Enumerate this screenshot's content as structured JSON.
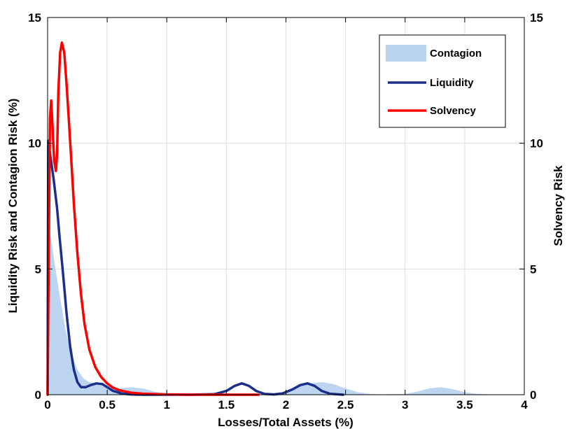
{
  "chart_data": {
    "type": "area",
    "x_axis": {
      "label": "Losses/Total Assets (%)",
      "range": [
        0,
        4
      ],
      "ticks": [
        0,
        0.5,
        1,
        1.5,
        2,
        2.5,
        3,
        3.5,
        4
      ],
      "tick_labels": [
        "0",
        "0.5",
        "1",
        "1.5",
        "2",
        "2.5",
        "3",
        "3.5",
        "4"
      ]
    },
    "y_axis_left": {
      "label": "Liquidity Risk and Contagion Risk (%)",
      "range": [
        0,
        15
      ],
      "ticks": [
        0,
        5,
        10,
        15
      ],
      "tick_labels": [
        "0",
        "5",
        "10",
        "15"
      ]
    },
    "y_axis_right": {
      "label": "Solvency Risk",
      "range": [
        0,
        15
      ],
      "ticks": [
        0,
        5,
        10,
        15
      ],
      "tick_labels": [
        "0",
        "5",
        "10",
        "15"
      ]
    },
    "grid": true,
    "legend": {
      "placement": "top-right",
      "entries": [
        "Contagion",
        "Liquidity",
        "Solvency"
      ]
    },
    "series": [
      {
        "name": "Contagion",
        "kind": "area",
        "axis": "left",
        "color": "#b9d3f0",
        "points": [
          [
            0,
            0
          ],
          [
            0.01,
            6.5
          ],
          [
            0.03,
            6.2
          ],
          [
            0.06,
            5.2
          ],
          [
            0.1,
            4.0
          ],
          [
            0.15,
            2.6
          ],
          [
            0.2,
            1.6
          ],
          [
            0.25,
            1.0
          ],
          [
            0.3,
            0.65
          ],
          [
            0.35,
            0.5
          ],
          [
            0.4,
            0.45
          ],
          [
            0.5,
            0.35
          ],
          [
            0.6,
            0.25
          ],
          [
            0.7,
            0.3
          ],
          [
            0.8,
            0.25
          ],
          [
            0.9,
            0.12
          ],
          [
            1.0,
            0.04
          ],
          [
            1.1,
            0.02
          ],
          [
            1.2,
            0.01
          ],
          [
            1.4,
            0
          ],
          [
            1.6,
            0
          ],
          [
            1.8,
            0.02
          ],
          [
            2.0,
            0.12
          ],
          [
            2.1,
            0.3
          ],
          [
            2.2,
            0.45
          ],
          [
            2.3,
            0.5
          ],
          [
            2.4,
            0.42
          ],
          [
            2.5,
            0.25
          ],
          [
            2.6,
            0.1
          ],
          [
            2.7,
            0.03
          ],
          [
            2.8,
            0.01
          ],
          [
            3.0,
            0.03
          ],
          [
            3.1,
            0.12
          ],
          [
            3.2,
            0.25
          ],
          [
            3.3,
            0.3
          ],
          [
            3.4,
            0.22
          ],
          [
            3.5,
            0.1
          ],
          [
            3.6,
            0.03
          ],
          [
            3.7,
            0.01
          ],
          [
            3.8,
            0
          ]
        ]
      },
      {
        "name": "Liquidity",
        "kind": "line",
        "axis": "left",
        "color": "#1b2f8a",
        "points": [
          [
            0,
            0
          ],
          [
            0.005,
            10.1
          ],
          [
            0.02,
            9.6
          ],
          [
            0.05,
            8.6
          ],
          [
            0.08,
            7.4
          ],
          [
            0.1,
            6.3
          ],
          [
            0.13,
            4.8
          ],
          [
            0.16,
            3.2
          ],
          [
            0.19,
            1.9
          ],
          [
            0.22,
            1.0
          ],
          [
            0.25,
            0.5
          ],
          [
            0.28,
            0.3
          ],
          [
            0.32,
            0.3
          ],
          [
            0.36,
            0.38
          ],
          [
            0.41,
            0.45
          ],
          [
            0.46,
            0.42
          ],
          [
            0.5,
            0.3
          ],
          [
            0.55,
            0.15
          ],
          [
            0.62,
            0.05
          ],
          [
            0.7,
            0.01
          ],
          [
            0.8,
            0
          ],
          [
            1.0,
            0
          ],
          [
            1.2,
            0
          ],
          [
            1.4,
            0.02
          ],
          [
            1.5,
            0.15
          ],
          [
            1.57,
            0.35
          ],
          [
            1.63,
            0.45
          ],
          [
            1.69,
            0.35
          ],
          [
            1.75,
            0.15
          ],
          [
            1.82,
            0.03
          ],
          [
            1.9,
            0.01
          ],
          [
            1.97,
            0.05
          ],
          [
            2.05,
            0.2
          ],
          [
            2.12,
            0.38
          ],
          [
            2.18,
            0.45
          ],
          [
            2.24,
            0.35
          ],
          [
            2.3,
            0.15
          ],
          [
            2.37,
            0.04
          ],
          [
            2.48,
            0
          ]
        ]
      },
      {
        "name": "Solvency",
        "kind": "line",
        "axis": "right",
        "color": "#ff0000",
        "points": [
          [
            0,
            0
          ],
          [
            0.01,
            6
          ],
          [
            0.02,
            11.0
          ],
          [
            0.03,
            11.7
          ],
          [
            0.04,
            10.8
          ],
          [
            0.055,
            9.3
          ],
          [
            0.07,
            8.9
          ],
          [
            0.08,
            9.6
          ],
          [
            0.09,
            12.0
          ],
          [
            0.105,
            13.6
          ],
          [
            0.12,
            14.0
          ],
          [
            0.14,
            13.6
          ],
          [
            0.16,
            12.3
          ],
          [
            0.18,
            10.8
          ],
          [
            0.2,
            9.2
          ],
          [
            0.22,
            7.6
          ],
          [
            0.25,
            5.6
          ],
          [
            0.28,
            4.0
          ],
          [
            0.31,
            2.8
          ],
          [
            0.35,
            1.8
          ],
          [
            0.4,
            1.1
          ],
          [
            0.45,
            0.7
          ],
          [
            0.5,
            0.45
          ],
          [
            0.55,
            0.28
          ],
          [
            0.6,
            0.18
          ],
          [
            0.7,
            0.08
          ],
          [
            0.8,
            0.04
          ],
          [
            1.0,
            0.01
          ],
          [
            1.2,
            0
          ],
          [
            1.5,
            0
          ],
          [
            1.77,
            0
          ]
        ]
      }
    ]
  }
}
